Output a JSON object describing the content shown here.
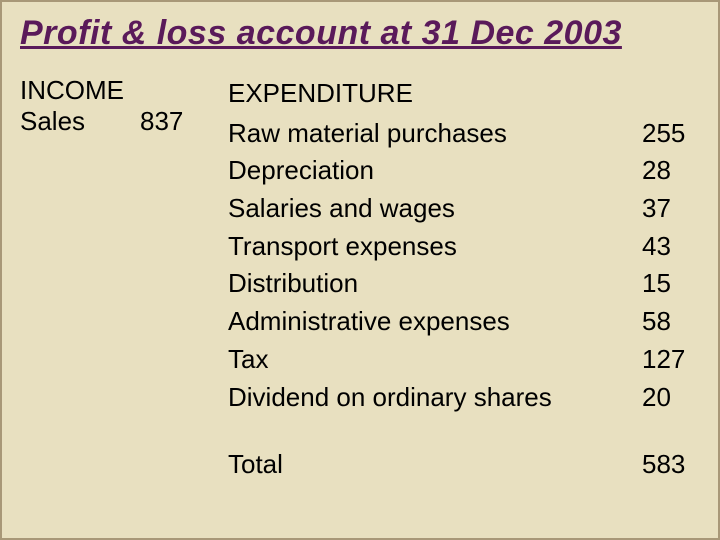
{
  "title": "Profit & loss account at 31 Dec 2003",
  "income": {
    "header": "INCOME",
    "items": [
      {
        "label": "Sales",
        "value": "837"
      }
    ]
  },
  "expenditure": {
    "header": "EXPENDITURE",
    "items": [
      {
        "label": "Raw material purchases",
        "value": "255"
      },
      {
        "label": "Depreciation",
        "value": "28"
      },
      {
        "label": "Salaries and wages",
        "value": "37"
      },
      {
        "label": "Transport expenses",
        "value": "43"
      },
      {
        "label": "Distribution",
        "value": "15"
      },
      {
        "label": "Administrative expenses",
        "value": "58"
      },
      {
        "label": "Tax",
        "value": "127"
      },
      {
        "label": "Dividend on ordinary shares",
        "value": "20"
      }
    ],
    "total_label": "Total",
    "total_value": "583"
  },
  "style": {
    "background_color": "#e8e0c0",
    "border_color": "#a89878",
    "title_color": "#5a1a5a",
    "text_color": "#000000",
    "title_fontsize": 34,
    "body_fontsize": 26
  }
}
